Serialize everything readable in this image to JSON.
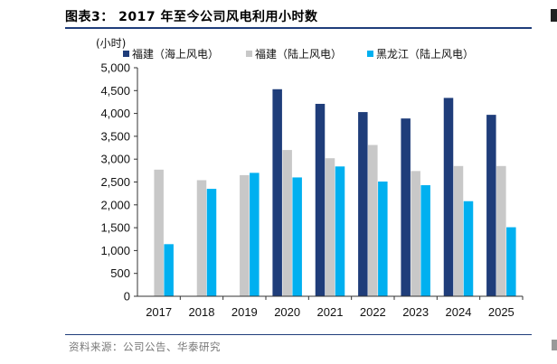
{
  "figure": {
    "title": "图表3：  2017 年至今公司风电利用小时数",
    "source": "资料来源：公司公告、华泰研究"
  },
  "chart_data": {
    "type": "bar",
    "unit_label": "(小时)",
    "categories": [
      "2017",
      "2018",
      "2019",
      "2020",
      "2021",
      "2022",
      "2023",
      "2024",
      "2025"
    ],
    "series": [
      {
        "name": "福建（海上风电）",
        "color": "#1f3d7a",
        "values": [
          null,
          null,
          null,
          4530,
          4210,
          4030,
          3890,
          4340,
          3970
        ]
      },
      {
        "name": "福建（陆上风电）",
        "color": "#c8c8c8",
        "values": [
          2770,
          2540,
          2650,
          3200,
          3020,
          3310,
          2740,
          2850,
          2850
        ]
      },
      {
        "name": "黑龙江（陆上风电）",
        "color": "#00b0f0",
        "values": [
          1140,
          2350,
          2700,
          2600,
          2840,
          2510,
          2430,
          2080,
          1510
        ]
      }
    ],
    "ylim": [
      0,
      5000
    ],
    "yticks": [
      "0",
      "500",
      "1,000",
      "1,500",
      "2,000",
      "2,500",
      "3,000",
      "3,500",
      "4,000",
      "4,500",
      "5,000"
    ],
    "ytick_values": [
      0,
      500,
      1000,
      1500,
      2000,
      2500,
      3000,
      3500,
      4000,
      4500,
      5000
    ],
    "legend_position": "top",
    "grid": false
  }
}
